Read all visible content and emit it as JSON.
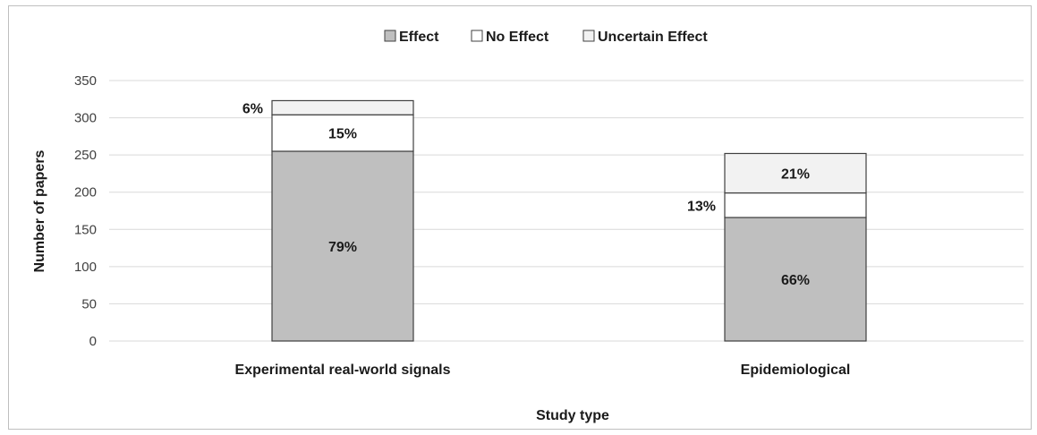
{
  "chart_data": {
    "type": "bar",
    "stacked": true,
    "categories": [
      "Experimental real-world signals",
      "Epidemiological"
    ],
    "series": [
      {
        "name": "Effect",
        "values": [
          255,
          166
        ],
        "labels": [
          "79%",
          "66%"
        ],
        "color": "#bfbfbf"
      },
      {
        "name": "No Effect",
        "values": [
          49,
          33
        ],
        "labels": [
          "15%",
          "13%"
        ],
        "color": "#ffffff"
      },
      {
        "name": "Uncertain Effect",
        "values": [
          19,
          53
        ],
        "labels": [
          "6%",
          "21%"
        ],
        "color": "#f2f2f2"
      }
    ],
    "xlabel": "Study type",
    "ylabel": "Number of papers",
    "ylim": [
      0,
      350
    ],
    "yticks": [
      0,
      50,
      100,
      150,
      200,
      250,
      300,
      350
    ],
    "grid": true,
    "legend": "top-center"
  }
}
